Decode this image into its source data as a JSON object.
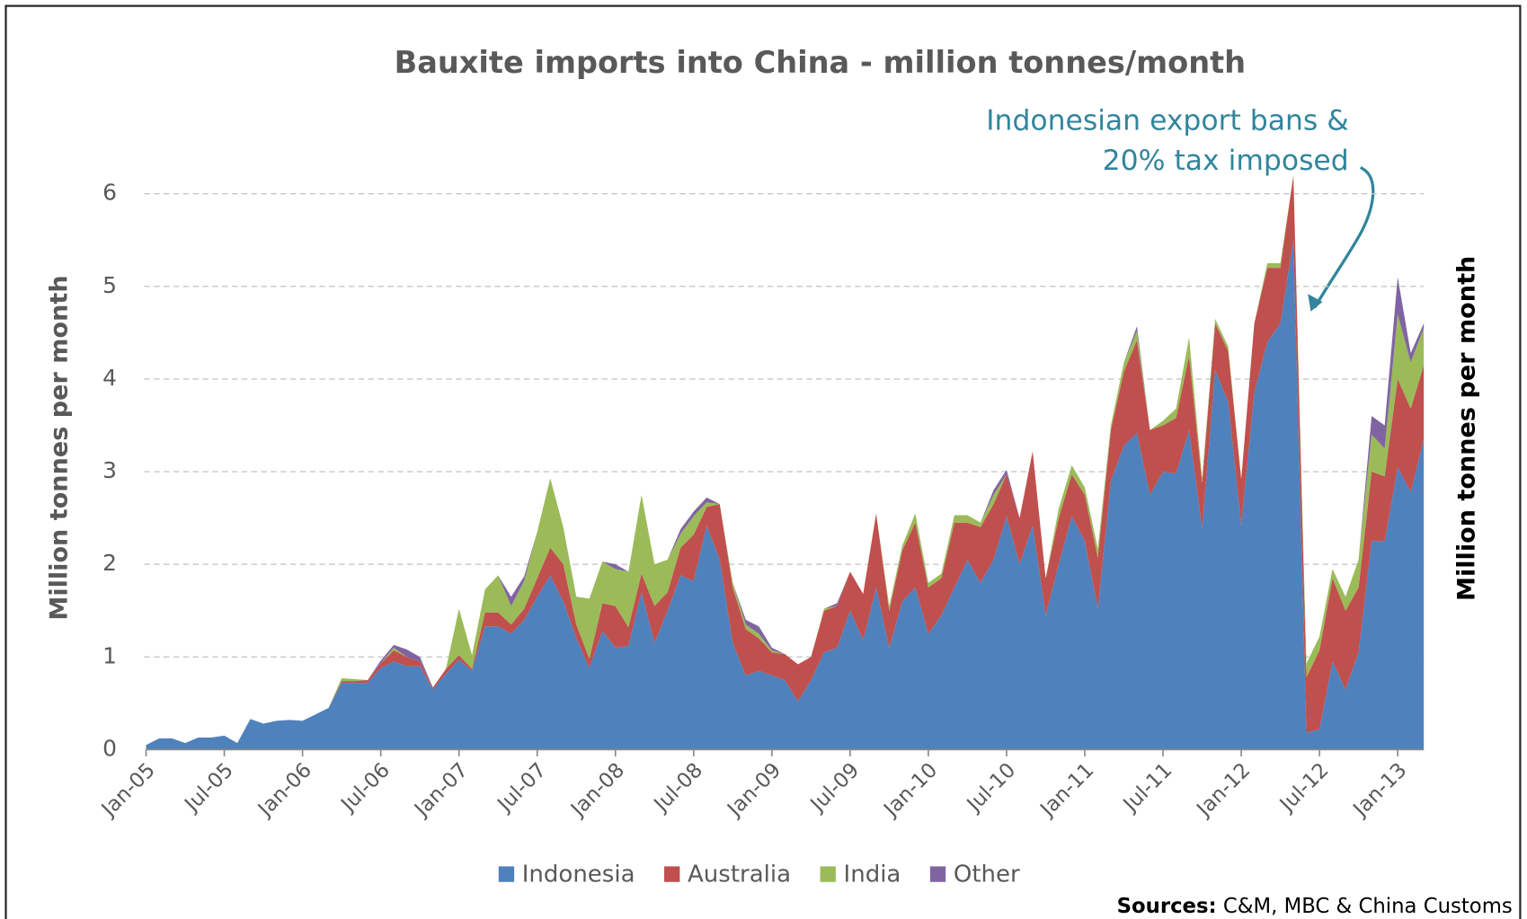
{
  "chart_data": {
    "type": "stacked_area",
    "title": "Bauxite imports into China - million tonnes/month",
    "y_label": "Million tonnes per month",
    "y2_label": "Million tonnes per month",
    "annotation": [
      "Indonesian export bans &",
      "20% tax imposed"
    ],
    "source_label": "Sources:",
    "source": "C&M, MBC & China Customs",
    "categories": [
      "Jan-05",
      null,
      null,
      null,
      null,
      null,
      "Jul-05",
      null,
      null,
      null,
      null,
      null,
      "Jan-06",
      null,
      null,
      null,
      null,
      null,
      "Jul-06",
      null,
      null,
      null,
      null,
      null,
      "Jan-07",
      null,
      null,
      null,
      null,
      null,
      "Jul-07",
      null,
      null,
      null,
      null,
      null,
      "Jan-08",
      null,
      null,
      null,
      null,
      null,
      "Jul-08",
      null,
      null,
      null,
      null,
      null,
      "Jan-09",
      null,
      null,
      null,
      null,
      null,
      "Jul-09",
      null,
      null,
      null,
      null,
      null,
      "Jan-10",
      null,
      null,
      null,
      null,
      null,
      "Jul-10",
      null,
      null,
      null,
      null,
      null,
      "Jan-11",
      null,
      null,
      null,
      null,
      null,
      "Jul-11",
      null,
      null,
      null,
      null,
      null,
      "Jan-12",
      null,
      null,
      null,
      null,
      null,
      "Jul-12",
      null,
      null,
      null,
      null,
      null,
      "Jan-13",
      null,
      null
    ],
    "series": [
      {
        "name": "Indonesia",
        "color": "#4f81bd",
        "values": [
          0.05,
          0.12,
          0.12,
          0.07,
          0.13,
          0.13,
          0.15,
          0.07,
          0.33,
          0.28,
          0.31,
          0.32,
          0.31,
          0.38,
          0.45,
          0.72,
          0.72,
          0.72,
          0.88,
          0.95,
          0.9,
          0.9,
          0.65,
          0.82,
          0.97,
          0.85,
          1.33,
          1.33,
          1.25,
          1.4,
          1.65,
          1.88,
          1.6,
          1.2,
          0.88,
          1.28,
          1.1,
          1.12,
          1.7,
          1.15,
          1.5,
          1.88,
          1.82,
          2.42,
          2.05,
          1.15,
          0.8,
          0.85,
          0.8,
          0.75,
          0.52,
          0.75,
          1.05,
          1.1,
          1.5,
          1.18,
          1.75,
          1.1,
          1.6,
          1.75,
          1.25,
          1.45,
          1.75,
          2.05,
          1.8,
          2.05,
          2.52,
          2.0,
          2.42,
          1.45,
          2.0,
          2.52,
          2.25,
          1.52,
          2.9,
          3.28,
          3.42,
          2.75,
          3.0,
          2.98,
          3.45,
          2.38,
          4.1,
          3.75,
          2.42,
          3.85,
          4.4,
          4.6,
          5.5,
          0.18,
          0.22,
          0.95,
          0.65,
          1.05,
          2.25,
          2.25,
          3.05,
          2.78,
          3.35
        ]
      },
      {
        "name": "Australia",
        "color": "#c0504d",
        "values": [
          0,
          0,
          0,
          0,
          0,
          0,
          0,
          0,
          0,
          0,
          0,
          0,
          0,
          0,
          0,
          0.02,
          0.02,
          0.03,
          0.05,
          0.12,
          0.1,
          0.05,
          0.02,
          0.05,
          0.05,
          0.02,
          0.15,
          0.15,
          0.1,
          0.12,
          0.2,
          0.3,
          0.4,
          0.15,
          0.1,
          0.3,
          0.45,
          0.2,
          0.2,
          0.4,
          0.2,
          0.3,
          0.5,
          0.2,
          0.6,
          0.6,
          0.5,
          0.35,
          0.25,
          0.28,
          0.4,
          0.25,
          0.45,
          0.45,
          0.42,
          0.5,
          0.8,
          0.4,
          0.55,
          0.7,
          0.5,
          0.4,
          0.7,
          0.4,
          0.6,
          0.6,
          0.45,
          0.5,
          0.8,
          0.4,
          0.5,
          0.45,
          0.5,
          0.55,
          0.55,
          0.8,
          1.0,
          0.7,
          0.5,
          0.6,
          0.8,
          0.5,
          0.5,
          0.55,
          0.5,
          0.75,
          0.8,
          0.6,
          0.7,
          0.6,
          0.85,
          0.9,
          0.85,
          0.7,
          0.75,
          0.7,
          0.95,
          0.9,
          0.8
        ]
      },
      {
        "name": "India",
        "color": "#9bbb59",
        "values": [
          0,
          0,
          0,
          0,
          0,
          0,
          0,
          0,
          0,
          0,
          0,
          0,
          0,
          0,
          0,
          0.03,
          0.02,
          0,
          0,
          0.03,
          0,
          0,
          0,
          0,
          0.5,
          0.15,
          0.25,
          0.4,
          0.2,
          0.3,
          0.5,
          0.75,
          0.4,
          0.3,
          0.65,
          0.45,
          0.4,
          0.6,
          0.85,
          0.45,
          0.35,
          0.15,
          0.2,
          0.05,
          0,
          0.05,
          0.05,
          0.05,
          0.02,
          0,
          0,
          0,
          0.02,
          0,
          0,
          0,
          0,
          0.05,
          0.05,
          0.1,
          0.05,
          0.05,
          0.08,
          0.08,
          0.05,
          0.1,
          0,
          0,
          0,
          0,
          0.1,
          0.1,
          0.08,
          0.1,
          0.05,
          0.1,
          0.1,
          0,
          0.05,
          0.1,
          0.2,
          0.05,
          0.05,
          0.05,
          0,
          0,
          0.05,
          0.05,
          0,
          0.15,
          0.15,
          0.1,
          0.15,
          0.3,
          0.4,
          0.3,
          0.7,
          0.5,
          0.4
        ]
      },
      {
        "name": "Other",
        "color": "#8064a2",
        "values": [
          0,
          0,
          0,
          0,
          0,
          0,
          0,
          0,
          0,
          0,
          0,
          0,
          0,
          0,
          0,
          0,
          0,
          0,
          0.03,
          0.03,
          0.08,
          0.05,
          0,
          0,
          0,
          0,
          0,
          0,
          0.1,
          0.05,
          0,
          0,
          0,
          0,
          0,
          0,
          0.05,
          0,
          0,
          0,
          0,
          0.05,
          0.05,
          0.05,
          0,
          0,
          0.05,
          0.08,
          0.03,
          0,
          0,
          0,
          0,
          0.03,
          0,
          0,
          0,
          0,
          0,
          0,
          0,
          0,
          0,
          0,
          0,
          0.05,
          0.05,
          0,
          0,
          0,
          0,
          0,
          0,
          0,
          0,
          0,
          0.05,
          0,
          0,
          0,
          0,
          0,
          0,
          0,
          0,
          0,
          0,
          0,
          0,
          0,
          0,
          0,
          0,
          0,
          0.2,
          0.25,
          0.4,
          0.1,
          0.05
        ]
      }
    ],
    "ylim": [
      0,
      6.5
    ],
    "yticks": [
      0,
      1,
      2,
      3,
      4,
      5,
      6
    ],
    "grid": true,
    "legend": "bottom"
  }
}
